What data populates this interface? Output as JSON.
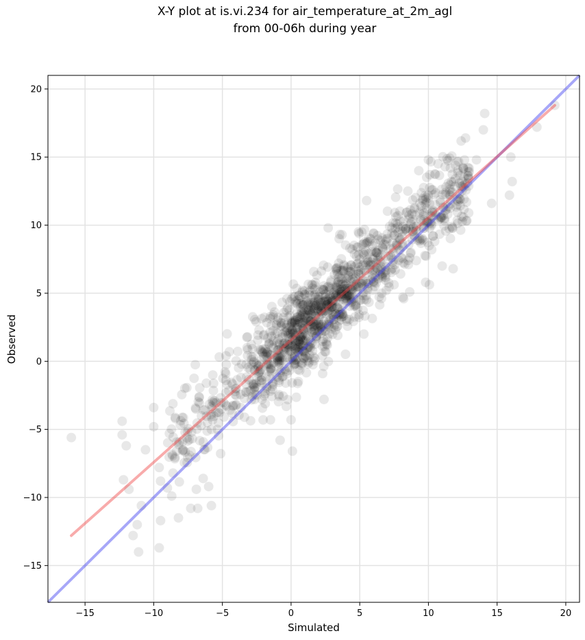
{
  "chart_data": {
    "type": "scatter",
    "title_line1": "X-Y plot at is.vi.234 for air_temperature_at_2m_agl",
    "title_line2": "from 00-06h during year",
    "xlabel": "Simulated",
    "ylabel": "Observed",
    "xlim": [
      -17.7,
      21.0
    ],
    "ylim": [
      -17.7,
      21.0
    ],
    "xticks": [
      -15,
      -10,
      -5,
      0,
      5,
      10,
      15,
      20
    ],
    "yticks": [
      -15,
      -10,
      -5,
      0,
      5,
      10,
      15,
      20
    ],
    "xtick_labels": [
      "−15",
      "−10",
      "−5",
      "0",
      "5",
      "10",
      "15",
      "20"
    ],
    "ytick_labels": [
      "−15",
      "−10",
      "−5",
      "0",
      "5",
      "10",
      "15",
      "20"
    ],
    "grid": true,
    "point_color": "#000000",
    "point_opacity": 0.09,
    "fit_line": {
      "color": "#ef4444",
      "opacity": 0.45,
      "x": [
        -16.0,
        19.2
      ],
      "y": [
        -12.8,
        18.8
      ]
    },
    "identity_line": {
      "color": "#3b3bef",
      "opacity": 0.45,
      "x": [
        -17.7,
        21.0
      ],
      "y": [
        -17.7,
        21.0
      ]
    },
    "outliers": [
      [
        -16.0,
        -5.6
      ],
      [
        -12.3,
        -4.4
      ],
      [
        -12.3,
        -5.4
      ],
      [
        -12.0,
        -6.2
      ],
      [
        -12.2,
        -8.7
      ],
      [
        -11.8,
        -9.4
      ],
      [
        -11.5,
        -12.8
      ],
      [
        -11.2,
        -12.0
      ],
      [
        -11.1,
        -14.0
      ],
      [
        -10.9,
        -10.6
      ],
      [
        -10.0,
        -3.4
      ],
      [
        -10.0,
        -4.8
      ],
      [
        -10.6,
        -6.5
      ],
      [
        -9.6,
        -13.7
      ],
      [
        -9.5,
        -11.7
      ],
      [
        -9.6,
        -7.8
      ],
      [
        -9.5,
        -8.8
      ],
      [
        -9.0,
        -9.3
      ],
      [
        -8.2,
        -11.5
      ],
      [
        -7.3,
        -10.8
      ],
      [
        -6.8,
        -10.8
      ],
      [
        -5.8,
        -10.6
      ],
      [
        -6.9,
        -9.4
      ],
      [
        -6.0,
        -9.2
      ],
      [
        -6.4,
        -8.6
      ],
      [
        -5.7,
        -1.0
      ],
      [
        -4.5,
        0.7
      ],
      [
        -3.2,
        1.0
      ],
      [
        -2.0,
        1.9
      ],
      [
        -1.5,
        3.3
      ],
      [
        -0.3,
        4.6
      ],
      [
        -0.8,
        -5.8
      ],
      [
        0.1,
        -6.6
      ],
      [
        -1.5,
        -4.3
      ],
      [
        0.0,
        -4.3
      ],
      [
        2.4,
        -2.8
      ],
      [
        2.3,
        -0.9
      ],
      [
        5.3,
        2.0
      ],
      [
        6.6,
        5.0
      ],
      [
        8.2,
        4.6
      ],
      [
        9.8,
        5.8
      ],
      [
        11.8,
        6.8
      ],
      [
        11.0,
        7.0
      ],
      [
        12.7,
        16.4
      ],
      [
        14.1,
        18.2
      ],
      [
        14.0,
        17.0
      ],
      [
        17.9,
        17.2
      ],
      [
        19.2,
        18.8
      ],
      [
        16.0,
        15.0
      ],
      [
        16.1,
        13.2
      ],
      [
        15.9,
        12.2
      ],
      [
        14.6,
        11.6
      ],
      [
        13.5,
        14.8
      ],
      [
        2.7,
        9.8
      ],
      [
        3.5,
        9.0
      ],
      [
        5.5,
        11.8
      ],
      [
        4.9,
        9.5
      ],
      [
        10.0,
        14.8
      ],
      [
        11.6,
        14.2
      ],
      [
        9.3,
        14.0
      ],
      [
        8.5,
        12.5
      ]
    ]
  }
}
